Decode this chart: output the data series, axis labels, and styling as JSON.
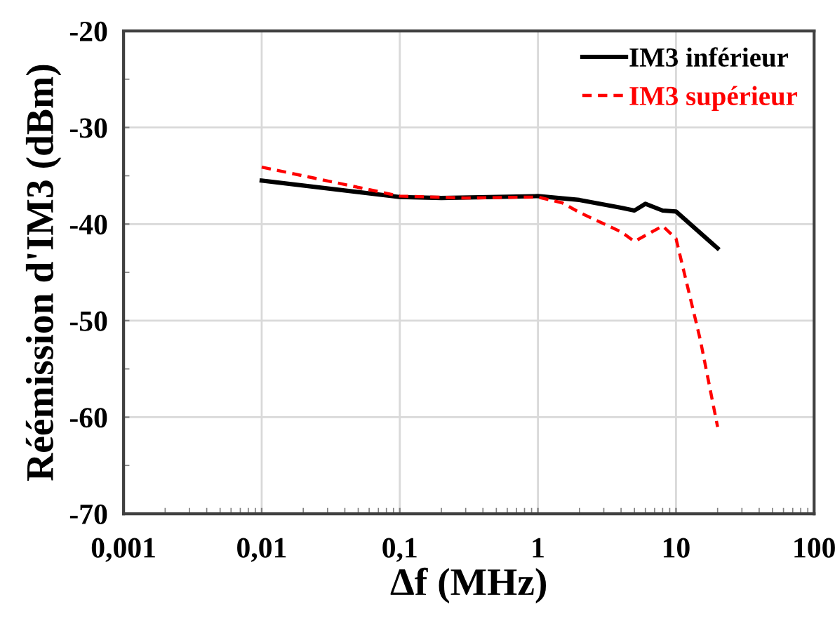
{
  "chart_data": {
    "type": "line",
    "xlabel": "Δf (MHz)",
    "ylabel": "Réémission d'IM3 (dBm)",
    "log": "x",
    "xlim": [
      0.001,
      100
    ],
    "xticks": [
      {
        "value": 0.001,
        "label": "0,001"
      },
      {
        "value": 0.01,
        "label": "0,01"
      },
      {
        "value": 0.1,
        "label": "0,1"
      },
      1,
      10,
      100
    ],
    "ylim": [
      -70,
      -20
    ],
    "yticks": [
      -70,
      -60,
      -50,
      -40,
      -30,
      -20
    ],
    "grid": true,
    "legend": "top right",
    "marker": "none",
    "series": [
      {
        "name": "IM3 inférieur",
        "color": "#000000",
        "line_style": "solid",
        "x": [
          0.01,
          0.1,
          0.2,
          1,
          2,
          4,
          5,
          6,
          8,
          10,
          20
        ],
        "values": [
          -35.5,
          -37.2,
          -37.3,
          -37.1,
          -37.5,
          -38.3,
          -38.6,
          -37.9,
          -38.6,
          -38.7,
          -42.5
        ]
      },
      {
        "name": "IM3 supérieur",
        "color": "#ff0000",
        "line_style": "dashed",
        "x": [
          0.01,
          0.1,
          0.3,
          1,
          1.5,
          2,
          4,
          5,
          8,
          10,
          15,
          20
        ],
        "values": [
          -34.1,
          -37.1,
          -37.3,
          -37.2,
          -37.8,
          -38.8,
          -40.8,
          -41.8,
          -40.2,
          -41.5,
          -52,
          -61
        ]
      }
    ]
  }
}
